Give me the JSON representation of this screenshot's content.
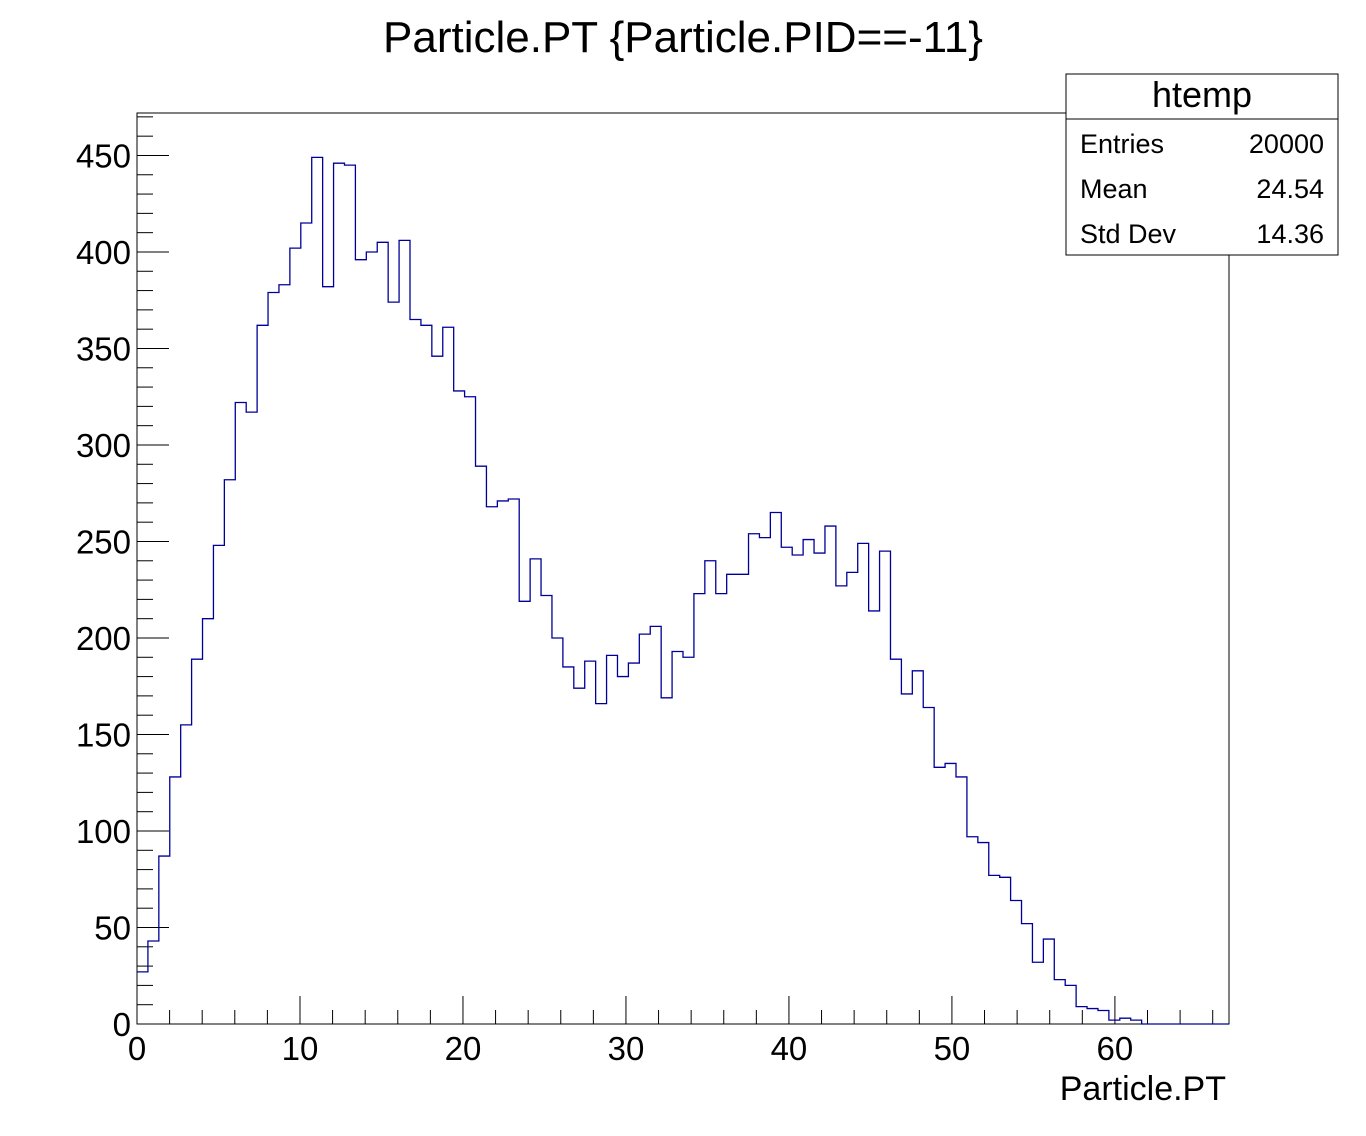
{
  "colors": {
    "background": "#ffffff",
    "axis": "#000000",
    "histogram_line": "#000099"
  },
  "stats_box": {
    "name": "htemp",
    "entries_label": "Entries",
    "entries_value": "20000",
    "mean_label": "Mean",
    "mean_value": "24.54",
    "stddev_label": "Std Dev",
    "stddev_value": "14.36"
  },
  "chart_data": {
    "type": "bar",
    "style": "step-histogram",
    "title": "Particle.PT {Particle.PID==-11}",
    "xlabel": "Particle.PT",
    "ylabel": "",
    "xlim": [
      0,
      67
    ],
    "ylim": [
      0,
      472
    ],
    "bin_width": 0.67,
    "x_ticks": [
      0,
      10,
      20,
      30,
      40,
      50,
      60
    ],
    "y_ticks": [
      0,
      50,
      100,
      150,
      200,
      250,
      300,
      350,
      400,
      450
    ],
    "grid": false,
    "legend": "none",
    "values": [
      27,
      43,
      87,
      128,
      155,
      189,
      210,
      248,
      282,
      322,
      317,
      362,
      379,
      383,
      402,
      415,
      449,
      382,
      446,
      445,
      396,
      400,
      405,
      374,
      406,
      365,
      362,
      346,
      361,
      328,
      325,
      289,
      268,
      271,
      272,
      219,
      241,
      222,
      200,
      185,
      174,
      188,
      166,
      191,
      180,
      187,
      202,
      206,
      169,
      193,
      190,
      223,
      240,
      223,
      233,
      233,
      254,
      252,
      265,
      247,
      243,
      251,
      244,
      258,
      227,
      234,
      249,
      214,
      245,
      189,
      171,
      183,
      164,
      133,
      135,
      128,
      97,
      94,
      77,
      76,
      64,
      52,
      32,
      44,
      23,
      20,
      9,
      8,
      7,
      2,
      3,
      2,
      0,
      0,
      0,
      0,
      0,
      0,
      0,
      0
    ]
  }
}
